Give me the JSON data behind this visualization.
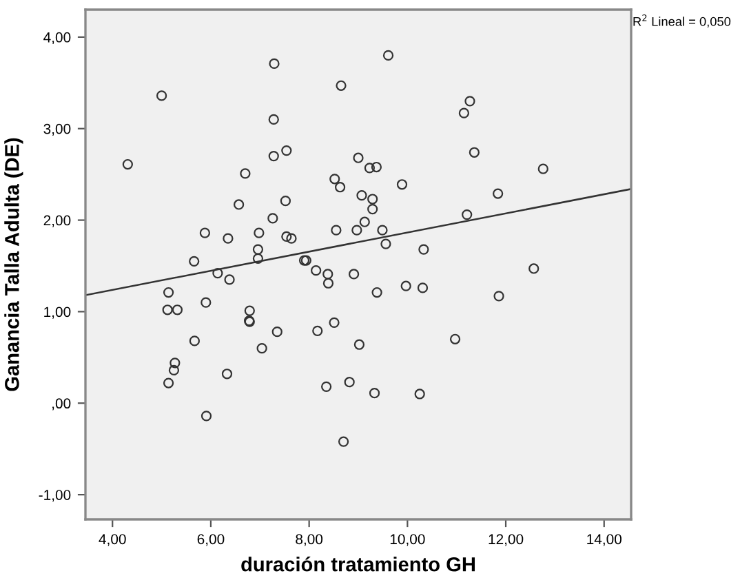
{
  "chart_data": {
    "type": "scatter",
    "xlabel": "duración tratamiento GH",
    "ylabel": "Ganancia Talla Adulta (DE)",
    "annotations": [
      "R$^{2}$ Lineal = 0,050"
    ],
    "xlim": [
      3.45,
      14.55
    ],
    "ylim": [
      -1.27,
      4.3
    ],
    "xticks": [
      {
        "value": 4,
        "label": "4,00"
      },
      {
        "value": 6,
        "label": "6,00"
      },
      {
        "value": 8,
        "label": "8,00"
      },
      {
        "value": 10,
        "label": "10,00"
      },
      {
        "value": 12,
        "label": "12,00"
      },
      {
        "value": 14,
        "label": "14,00"
      }
    ],
    "yticks": [
      {
        "value": -1,
        "label": "-1,00"
      },
      {
        "value": 0,
        "label": ",00"
      },
      {
        "value": 1,
        "label": "1,00"
      },
      {
        "value": 2,
        "label": "2,00"
      },
      {
        "value": 3,
        "label": "3,00"
      },
      {
        "value": 4,
        "label": "4,00"
      }
    ],
    "grid": false,
    "series": [
      {
        "type": "scatter",
        "marker": "circle",
        "color": "#333333",
        "x": [
          4.31,
          5.0,
          7.29,
          9.61,
          8.65,
          7.28,
          7.28,
          7.54,
          6.7,
          9.0,
          9.23,
          9.37,
          9.89,
          8.52,
          8.63,
          9.07,
          9.29,
          9.29,
          6.57,
          7.52,
          7.26,
          9.13,
          8.55,
          8.97,
          9.49,
          9.56,
          5.88,
          6.35,
          6.98,
          7.54,
          7.64,
          6.96,
          6.96,
          5.66,
          7.9,
          7.94,
          6.14,
          8.14,
          8.38,
          8.91,
          11.27,
          11.15,
          11.36,
          12.76,
          11.84,
          11.21,
          10.33,
          12.57,
          6.38,
          5.14,
          5.12,
          5.32,
          5.9,
          6.79,
          6.78,
          6.79,
          5.67,
          7.35,
          7.04,
          5.27,
          5.25,
          5.14,
          6.33,
          5.91,
          8.39,
          9.38,
          8.17,
          8.51,
          9.02,
          8.35,
          8.82,
          9.33,
          8.7,
          9.97,
          10.31,
          11.86,
          10.97,
          10.25
        ],
        "values": [
          2.61,
          3.36,
          3.71,
          3.8,
          3.47,
          3.1,
          2.7,
          2.76,
          2.51,
          2.68,
          2.57,
          2.58,
          2.39,
          2.45,
          2.36,
          2.27,
          2.23,
          2.12,
          2.17,
          2.21,
          2.02,
          1.98,
          1.89,
          1.89,
          1.89,
          1.74,
          1.86,
          1.8,
          1.86,
          1.82,
          1.8,
          1.68,
          1.58,
          1.55,
          1.56,
          1.56,
          1.42,
          1.45,
          1.41,
          1.41,
          3.3,
          3.17,
          2.74,
          2.56,
          2.29,
          2.06,
          1.68,
          1.47,
          1.35,
          1.21,
          1.02,
          1.02,
          1.1,
          1.01,
          0.9,
          0.89,
          0.68,
          0.78,
          0.6,
          0.44,
          0.36,
          0.22,
          0.32,
          -0.14,
          1.31,
          1.21,
          0.79,
          0.88,
          0.64,
          0.18,
          0.23,
          0.11,
          -0.42,
          1.28,
          1.26,
          1.17,
          0.7,
          0.1
        ]
      },
      {
        "type": "line",
        "color": "#333333",
        "x": [
          3.45,
          14.55
        ],
        "values": [
          1.18,
          2.34
        ]
      }
    ]
  }
}
